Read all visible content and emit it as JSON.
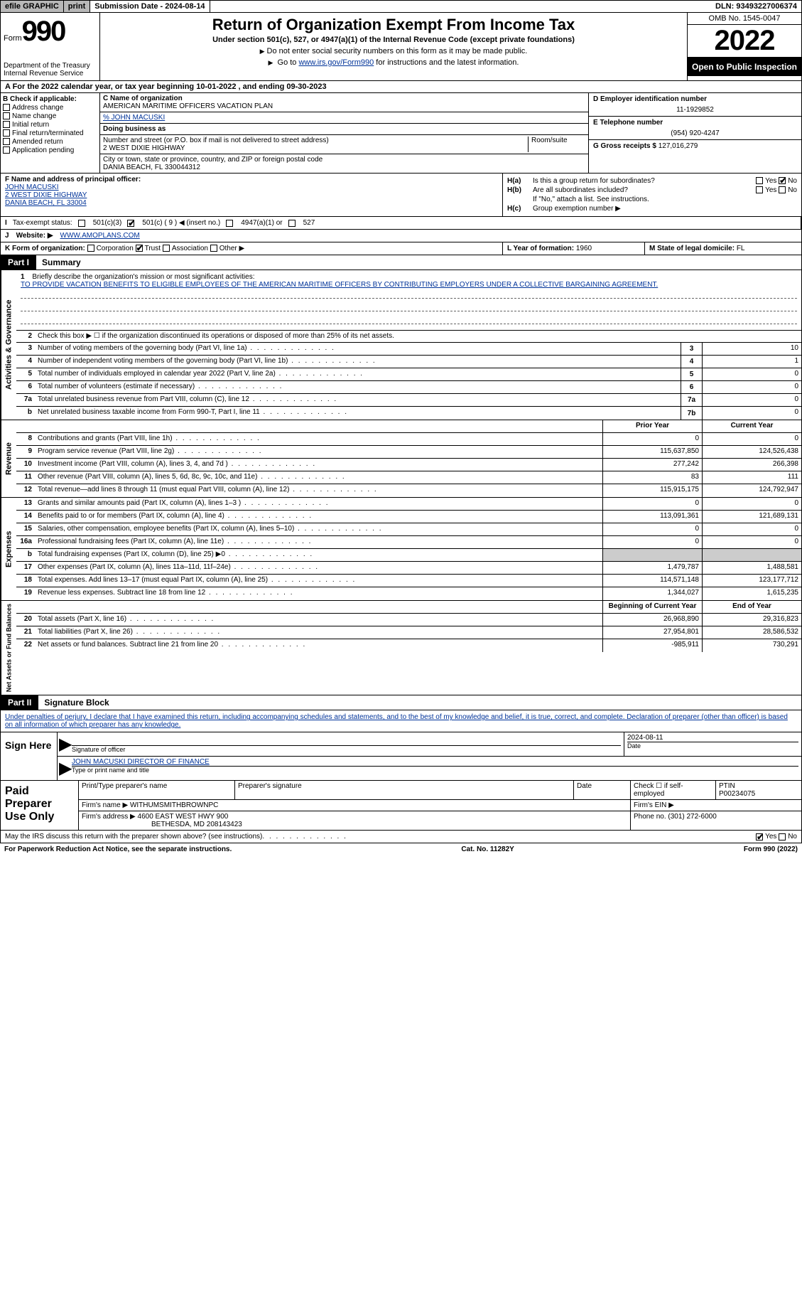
{
  "topbar": {
    "efile": "efile GRAPHIC",
    "print": "print",
    "sub_label": "Submission Date - ",
    "sub_date": "2024-08-14",
    "dln_label": "DLN: ",
    "dln": "93493227006374"
  },
  "header": {
    "form_word": "Form",
    "form_number": "990",
    "dept": "Department of the Treasury",
    "irs": "Internal Revenue Service",
    "title": "Return of Organization Exempt From Income Tax",
    "subtitle": "Under section 501(c), 527, or 4947(a)(1) of the Internal Revenue Code (except private foundations)",
    "note1": "Do not enter social security numbers on this form as it may be made public.",
    "note2_pre": "Go to ",
    "note2_link": "www.irs.gov/Form990",
    "note2_post": " for instructions and the latest information.",
    "omb": "OMB No. 1545-0047",
    "year": "2022",
    "inspect": "Open to Public Inspection"
  },
  "lineA": {
    "text_pre": "A For the 2022 calendar year, or tax year beginning ",
    "begin": "10-01-2022",
    "mid": "   , and ending ",
    "end": "09-30-2023"
  },
  "boxB": {
    "label": "B Check if applicable:",
    "opts": [
      "Address change",
      "Name change",
      "Initial return",
      "Final return/terminated",
      "Amended return",
      "Application pending"
    ]
  },
  "boxC": {
    "name_lbl": "C Name of organization",
    "name": "AMERICAN MARITIME OFFICERS VACATION PLAN",
    "care_of": "% JOHN MACUSKI",
    "dba_lbl": "Doing business as",
    "dba": "",
    "street_lbl": "Number and street (or P.O. box if mail is not delivered to street address)",
    "room_lbl": "Room/suite",
    "street": "2 WEST DIXIE HIGHWAY",
    "city_lbl": "City or town, state or province, country, and ZIP or foreign postal code",
    "city": "DANIA BEACH, FL  330044312"
  },
  "boxD": {
    "lbl": "D Employer identification number",
    "val": "11-1929852"
  },
  "boxE": {
    "lbl": "E Telephone number",
    "val": "(954) 920-4247"
  },
  "boxG": {
    "lbl": "G Gross receipts $ ",
    "val": "127,016,279"
  },
  "boxF": {
    "lbl": "F Name and address of principal officer:",
    "name": "JOHN MACUSKI",
    "street": "2 WEST DIXIE HIGHWAY",
    "city": "DANIA BEACH, FL  33004"
  },
  "boxH": {
    "a_lbl": "H(a)",
    "a_txt": "Is this a group return for subordinates?",
    "b_lbl": "H(b)",
    "b_txt": "Are all subordinates included?",
    "b_note": "If \"No,\" attach a list. See instructions.",
    "c_lbl": "H(c)",
    "c_txt": "Group exemption number ▶",
    "yes": "Yes",
    "no": "No"
  },
  "lineI": {
    "lbl": "I",
    "txt": "Tax-exempt status:",
    "opt1": "501(c)(3)",
    "opt2": "501(c) ( 9 ) ◀ (insert no.)",
    "opt3": "4947(a)(1) or",
    "opt4": "527"
  },
  "lineJ": {
    "lbl": "J",
    "txt": "Website: ▶",
    "val": "WWW.AMOPLANS.COM"
  },
  "lineK": {
    "lbl": "K Form of organization:",
    "opts": [
      "Corporation",
      "Trust",
      "Association",
      "Other ▶"
    ],
    "L_lbl": "L Year of formation: ",
    "L_val": "1960",
    "M_lbl": "M State of legal domicile: ",
    "M_val": "FL"
  },
  "parts": {
    "p1": "Part I",
    "p1_title": "Summary",
    "p2": "Part II",
    "p2_title": "Signature Block"
  },
  "section_labels": {
    "activities": "Activities & Governance",
    "revenue": "Revenue",
    "expenses": "Expenses",
    "netassets": "Net Assets or Fund Balances"
  },
  "summary": {
    "l1_lbl": "1",
    "l1_txt": "Briefly describe the organization's mission or most significant activities:",
    "l1_val": "TO PROVIDE VACATION BENEFITS TO ELIGIBLE EMPLOYEES OF THE AMERICAN MARITIME OFFICERS BY CONTRIBUTING EMPLOYERS UNDER A COLLECTIVE BARGAINING AGREEMENT.",
    "l2_lbl": "2",
    "l2_txt": "Check this box ▶ ☐ if the organization discontinued its operations or disposed of more than 25% of its net assets.",
    "rows_gov": [
      {
        "n": "3",
        "t": "Number of voting members of the governing body (Part VI, line 1a)",
        "b": "3",
        "v": "10"
      },
      {
        "n": "4",
        "t": "Number of independent voting members of the governing body (Part VI, line 1b)",
        "b": "4",
        "v": "1"
      },
      {
        "n": "5",
        "t": "Total number of individuals employed in calendar year 2022 (Part V, line 2a)",
        "b": "5",
        "v": "0"
      },
      {
        "n": "6",
        "t": "Total number of volunteers (estimate if necessary)",
        "b": "6",
        "v": "0"
      },
      {
        "n": "7a",
        "t": "Total unrelated business revenue from Part VIII, column (C), line 12",
        "b": "7a",
        "v": "0"
      },
      {
        "n": "b",
        "t": "Net unrelated business taxable income from Form 990-T, Part I, line 11",
        "b": "7b",
        "v": "0"
      }
    ],
    "col_prior": "Prior Year",
    "col_current": "Current Year",
    "rows_rev": [
      {
        "n": "8",
        "t": "Contributions and grants (Part VIII, line 1h)",
        "p": "0",
        "c": "0"
      },
      {
        "n": "9",
        "t": "Program service revenue (Part VIII, line 2g)",
        "p": "115,637,850",
        "c": "124,526,438"
      },
      {
        "n": "10",
        "t": "Investment income (Part VIII, column (A), lines 3, 4, and 7d )",
        "p": "277,242",
        "c": "266,398"
      },
      {
        "n": "11",
        "t": "Other revenue (Part VIII, column (A), lines 5, 6d, 8c, 9c, 10c, and 11e)",
        "p": "83",
        "c": "111"
      },
      {
        "n": "12",
        "t": "Total revenue—add lines 8 through 11 (must equal Part VIII, column (A), line 12)",
        "p": "115,915,175",
        "c": "124,792,947"
      }
    ],
    "rows_exp": [
      {
        "n": "13",
        "t": "Grants and similar amounts paid (Part IX, column (A), lines 1–3 )",
        "p": "0",
        "c": "0"
      },
      {
        "n": "14",
        "t": "Benefits paid to or for members (Part IX, column (A), line 4)",
        "p": "113,091,361",
        "c": "121,689,131"
      },
      {
        "n": "15",
        "t": "Salaries, other compensation, employee benefits (Part IX, column (A), lines 5–10)",
        "p": "0",
        "c": "0"
      },
      {
        "n": "16a",
        "t": "Professional fundraising fees (Part IX, column (A), line 11e)",
        "p": "0",
        "c": "0"
      },
      {
        "n": "b",
        "t": "Total fundraising expenses (Part IX, column (D), line 25) ▶0",
        "p": "",
        "c": "",
        "shaded": true
      },
      {
        "n": "17",
        "t": "Other expenses (Part IX, column (A), lines 11a–11d, 11f–24e)",
        "p": "1,479,787",
        "c": "1,488,581"
      },
      {
        "n": "18",
        "t": "Total expenses. Add lines 13–17 (must equal Part IX, column (A), line 25)",
        "p": "114,571,148",
        "c": "123,177,712"
      },
      {
        "n": "19",
        "t": "Revenue less expenses. Subtract line 18 from line 12",
        "p": "1,344,027",
        "c": "1,615,235"
      }
    ],
    "col_begin": "Beginning of Current Year",
    "col_end": "End of Year",
    "rows_net": [
      {
        "n": "20",
        "t": "Total assets (Part X, line 16)",
        "p": "26,968,890",
        "c": "29,316,823"
      },
      {
        "n": "21",
        "t": "Total liabilities (Part X, line 26)",
        "p": "27,954,801",
        "c": "28,586,532"
      },
      {
        "n": "22",
        "t": "Net assets or fund balances. Subtract line 21 from line 20",
        "p": "-985,911",
        "c": "730,291"
      }
    ]
  },
  "sig": {
    "intro": "Under penalties of perjury, I declare that I have examined this return, including accompanying schedules and statements, and to the best of my knowledge and belief, it is true, correct, and complete. Declaration of preparer (other than officer) is based on all information of which preparer has any knowledge.",
    "sign_here": "Sign Here",
    "sig_of_officer": "Signature of officer",
    "date_lbl": "Date",
    "date_val": "2024-08-11",
    "name_title": "JOHN MACUSKI  DIRECTOR OF FINANCE",
    "type_lbl": "Type or print name and title"
  },
  "paid": {
    "label": "Paid Preparer Use Only",
    "print_name_lbl": "Print/Type preparer's name",
    "prep_sig_lbl": "Preparer's signature",
    "date_lbl": "Date",
    "check_lbl": "Check ☐ if self-employed",
    "ptin_lbl": "PTIN",
    "ptin_val": "P00234075",
    "firm_name_lbl": "Firm's name    ▶",
    "firm_name": "WITHUMSMITHBROWNPC",
    "firm_ein_lbl": "Firm's EIN ▶",
    "firm_addr_lbl": "Firm's address ▶",
    "firm_addr1": "4600 EAST WEST HWY 900",
    "firm_addr2": "BETHESDA, MD  208143423",
    "phone_lbl": "Phone no. ",
    "phone_val": "(301) 272-6000"
  },
  "footer": {
    "discuss": "May the IRS discuss this return with the preparer shown above? (see instructions)",
    "yes": "Yes",
    "no": "No",
    "paperwork": "For Paperwork Reduction Act Notice, see the separate instructions.",
    "cat": "Cat. No. 11282Y",
    "formrev": "Form 990 (2022)"
  }
}
